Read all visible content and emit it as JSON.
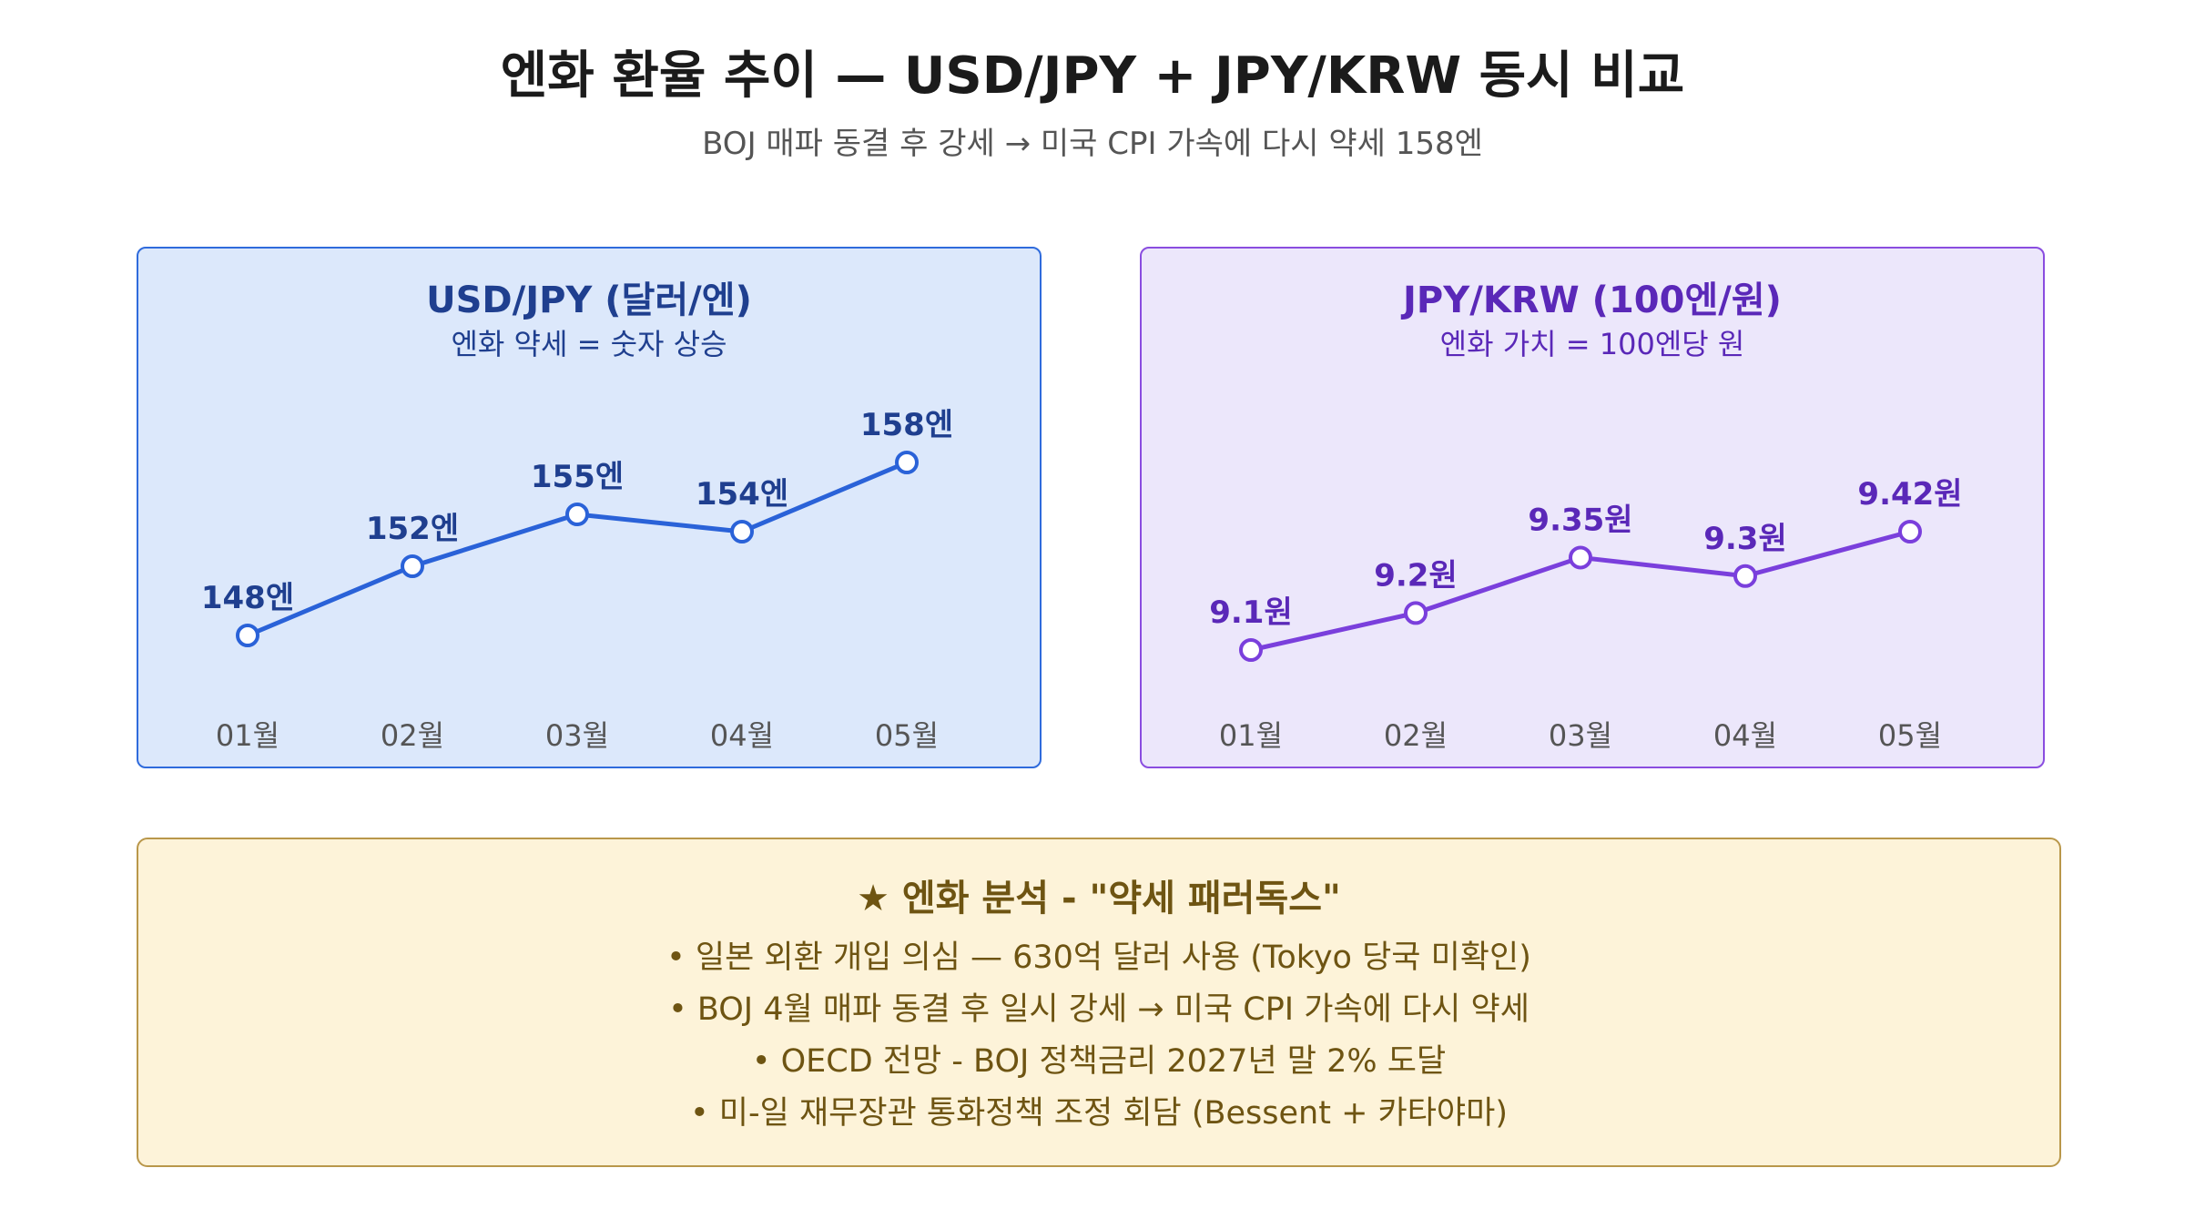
{
  "title": "엔화 환율 추이 — USD/JPY + JPY/KRW 동시 비교",
  "subtitle": "BOJ 매파 동결 후 강세 → 미국 CPI 가속에 다시 약세 158엔",
  "chart_data": [
    {
      "type": "line",
      "title": "USD/JPY (달러/엔)",
      "subtitle": "엔화 약세 = 숫자 상승",
      "categories": [
        "01월",
        "02월",
        "03월",
        "04월",
        "05월"
      ],
      "values": [
        148,
        152,
        155,
        154,
        158
      ],
      "data_labels": [
        "148엔",
        "152엔",
        "155엔",
        "154엔",
        "158엔"
      ],
      "color": "#2a62d8",
      "grid": false,
      "legend": "none"
    },
    {
      "type": "line",
      "title": "JPY/KRW (100엔/원)",
      "subtitle": "엔화 가치 = 100엔당 원",
      "categories": [
        "01월",
        "02월",
        "03월",
        "04월",
        "05월"
      ],
      "values": [
        9.1,
        9.2,
        9.35,
        9.3,
        9.42
      ],
      "data_labels": [
        "9.1원",
        "9.2원",
        "9.35원",
        "9.3원",
        "9.42원"
      ],
      "color": "#7a3fdc",
      "grid": false,
      "legend": "none"
    }
  ],
  "callout": {
    "title": "★ 엔화 분석 - \"약세 패러독스\"",
    "items": [
      "• 일본 외환 개입 의심 — 630억 달러 사용 (Tokyo 당국 미확인)",
      "• BOJ 4월 매파 동결 후 일시 강세 → 미국 CPI 가속에 다시 약세",
      "• OECD 전망 - BOJ 정책금리 2027년 말 2% 도달",
      "• 미-일 재무장관 통화정책 조정 회담 (Bessent + 카타야마)"
    ]
  }
}
